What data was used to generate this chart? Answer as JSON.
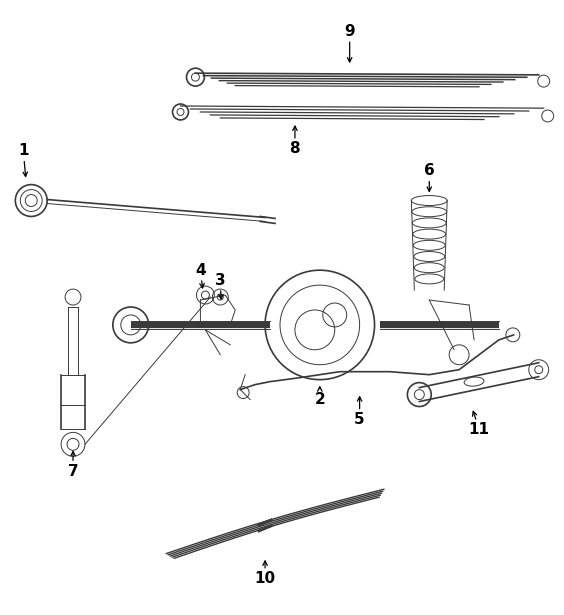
{
  "background_color": "#ffffff",
  "line_color": "#3a3a3a",
  "figure_width": 5.64,
  "figure_height": 6.15,
  "dpi": 100
}
